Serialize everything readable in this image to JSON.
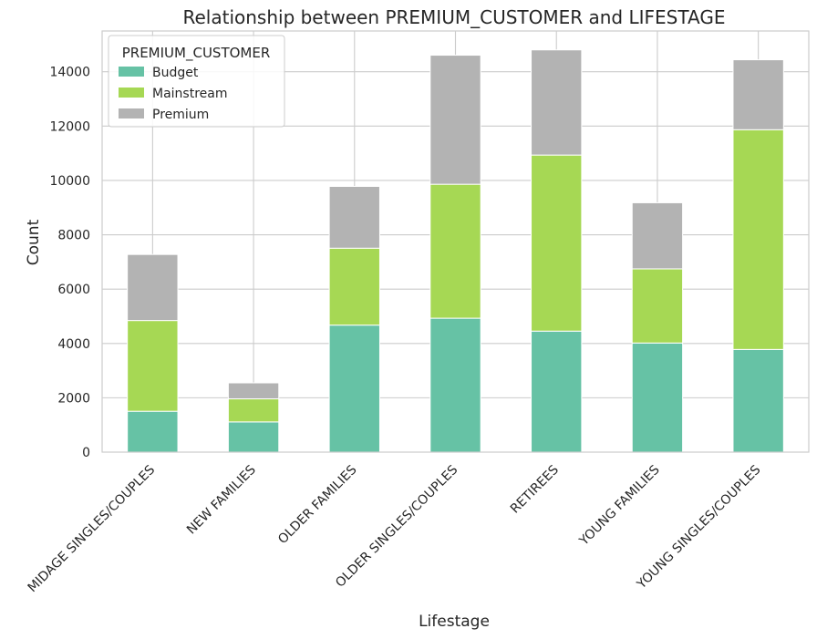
{
  "chart_data": {
    "type": "bar",
    "stacked": true,
    "title": "Relationship between PREMIUM_CUSTOMER and LIFESTAGE",
    "xlabel": "Lifestage",
    "ylabel": "Count",
    "ylim": [
      0,
      15500
    ],
    "yticks": [
      "0",
      "2000",
      "4000",
      "6000",
      "8000",
      "10000",
      "12000",
      "14000"
    ],
    "ytick_values": [
      0,
      2000,
      4000,
      6000,
      8000,
      10000,
      12000,
      14000
    ],
    "grid": true,
    "legend": {
      "title": "PREMIUM_CUSTOMER",
      "position": "top-left"
    },
    "categories": [
      "MIDAGE SINGLES/COUPLES",
      "NEW FAMILIES",
      "OLDER FAMILIES",
      "OLDER SINGLES/COUPLES",
      "RETIREES",
      "YOUNG FAMILIES",
      "YOUNG SINGLES/COUPLES"
    ],
    "series": [
      {
        "name": "Budget",
        "color": "#66c2a5",
        "values": [
          1504,
          1112,
          4675,
          4929,
          4454,
          4017,
          3779
        ]
      },
      {
        "name": "Mainstream",
        "color": "#a6d854",
        "values": [
          3340,
          849,
          2831,
          4930,
          6479,
          2728,
          8088
        ]
      },
      {
        "name": "Premium",
        "color": "#b3b3b3",
        "values": [
          2431,
          588,
          2274,
          4750,
          3872,
          2433,
          2574
        ]
      }
    ]
  }
}
